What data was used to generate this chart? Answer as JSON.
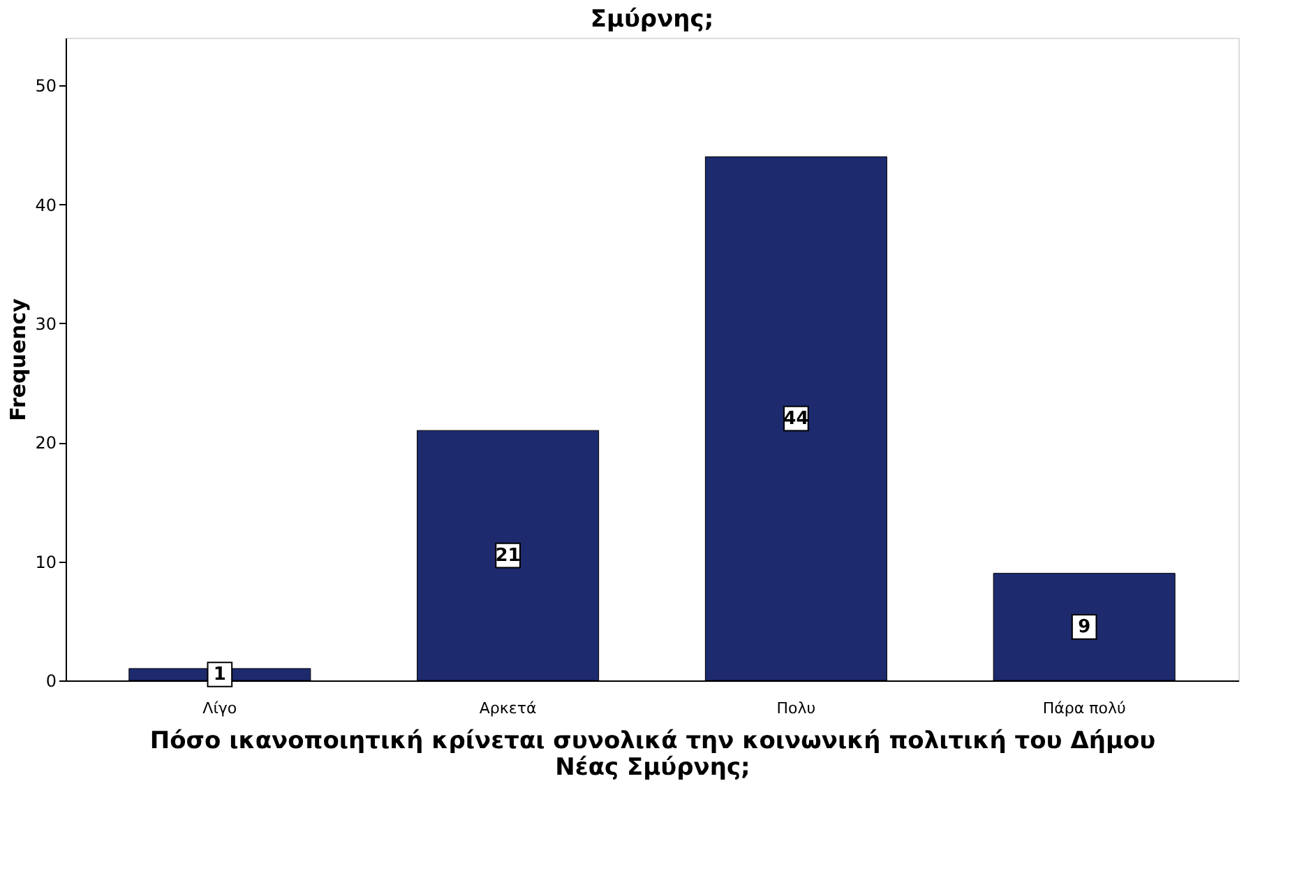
{
  "chart_data": {
    "type": "bar",
    "title": "Σμύρνης;",
    "xlabel": "Πόσο ικανοποιητική κρίνεται συνολικά την κοινωνική πολιτική του Δήμου Νέας Σμύρνης;",
    "ylabel": "Frequency",
    "categories": [
      "Λίγο",
      "Αρκετά",
      "Πολυ",
      "Πάρα πολύ"
    ],
    "values": [
      1,
      21,
      44,
      9
    ],
    "color": "#1d2a6e",
    "ylim": [
      0,
      54
    ],
    "yticks": [
      0,
      10,
      20,
      30,
      40,
      50
    ],
    "grid": false,
    "data_labels": true
  }
}
